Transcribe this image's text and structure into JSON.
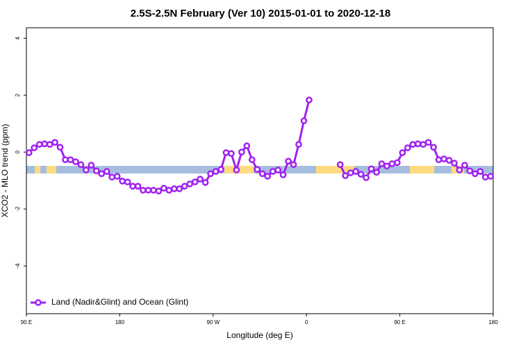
{
  "chart_data": {
    "type": "line",
    "title": "2.5S-2.5N February (Ver 10)   2015-01-01 to 2020-12-18",
    "x_label": "Longitude (deg E)",
    "y_label": "XCO2 - MLO trend (ppm)",
    "xlim": [
      90,
      540
    ],
    "xticks": [
      {
        "value": 90,
        "label": "90 E"
      },
      180,
      {
        "value": 270,
        "label": "90 W"
      },
      {
        "value": 360,
        "label": "0"
      },
      {
        "value": 450,
        "label": "90 E"
      },
      {
        "value": 540,
        "label": "180"
      }
    ],
    "ylim": [
      -5.68,
      4.37
    ],
    "yticks": [
      -4,
      -2,
      0,
      2,
      4
    ],
    "grid": false,
    "legend": "bottom-left",
    "x": [
      92.5,
      97.5,
      102.5,
      107.5,
      112.5,
      117.5,
      122.5,
      127.5,
      132.5,
      137.5,
      142.5,
      147.5,
      152.5,
      157.5,
      162.5,
      167.5,
      172.5,
      177.5,
      182.5,
      187.5,
      192.5,
      197.5,
      202.5,
      207.5,
      212.5,
      217.5,
      222.5,
      227.5,
      232.5,
      237.5,
      242.5,
      247.5,
      252.5,
      257.5,
      262.5,
      267.5,
      272.5,
      277.5,
      282.5,
      287.5,
      292.5,
      297.5,
      302.5,
      307.5,
      312.5,
      317.5,
      322.5,
      327.5,
      332.5,
      337.5,
      342.5,
      347.5,
      352.5,
      357.5,
      362.5,
      377.5,
      392.5,
      397.5,
      402.5,
      407.5,
      412.5,
      417.5,
      422.5,
      427.5,
      432.5,
      437.5,
      442.5,
      447.5,
      452.5,
      457.5,
      462.5,
      467.5,
      472.5,
      477.5,
      482.5,
      487.5,
      492.5,
      497.5,
      502.5,
      507.5,
      512.5,
      517.5,
      522.5,
      527.5,
      532.5,
      537.5
    ],
    "series": [
      {
        "name": "Land (Nadir&Glint) and Ocean (Glint)",
        "color": "#a020f0",
        "values": [
          -0.02,
          0.15,
          0.27,
          0.29,
          0.27,
          0.34,
          0.17,
          -0.27,
          -0.27,
          -0.34,
          -0.44,
          -0.63,
          -0.46,
          -0.66,
          -0.76,
          -0.68,
          -0.88,
          -0.85,
          -1.02,
          -1.05,
          -1.2,
          -1.2,
          -1.34,
          -1.34,
          -1.34,
          -1.37,
          -1.27,
          -1.34,
          -1.29,
          -1.29,
          -1.2,
          -1.12,
          -1.05,
          -0.95,
          -1.07,
          -0.76,
          -0.68,
          -0.61,
          -0.02,
          -0.05,
          -0.63,
          0,
          0.22,
          -0.27,
          -0.61,
          -0.76,
          -0.85,
          -0.68,
          -0.63,
          -0.8,
          -0.32,
          -0.44,
          0.27,
          1.1,
          1.83,
          null,
          -0.44,
          -0.83,
          -0.73,
          -0.68,
          -0.78,
          -0.9,
          -0.59,
          -0.71,
          -0.41,
          -0.49,
          -0.41,
          -0.37,
          -0.02,
          0.15,
          0.27,
          0.29,
          0.27,
          0.34,
          0.17,
          -0.27,
          -0.24,
          -0.29,
          -0.39,
          -0.63,
          -0.46,
          -0.66,
          -0.76,
          -0.68,
          -0.88,
          -0.85
        ]
      }
    ]
  }
}
